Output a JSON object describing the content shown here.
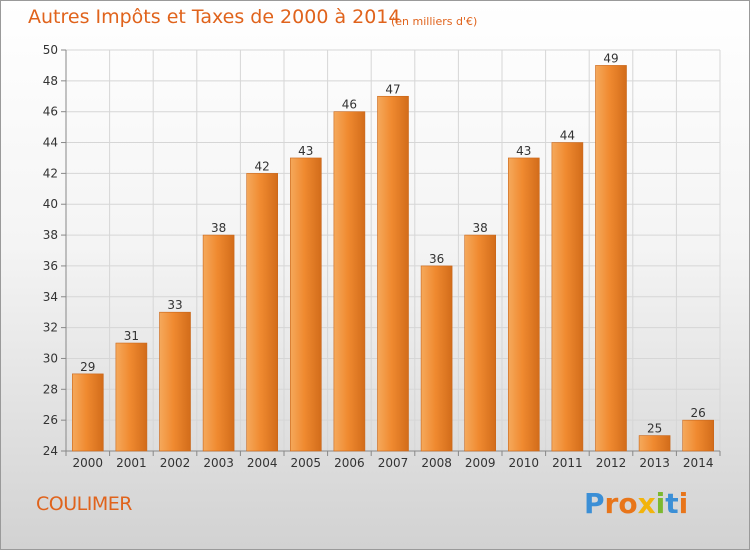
{
  "chart_data": {
    "type": "bar",
    "title": "Autres Impôts et Taxes de 2000 à 2014",
    "subtitle": "(en milliers d'€)",
    "categories": [
      "2000",
      "2001",
      "2002",
      "2003",
      "2004",
      "2005",
      "2006",
      "2007",
      "2008",
      "2009",
      "2010",
      "2011",
      "2012",
      "2013",
      "2014"
    ],
    "values": [
      29,
      31,
      33,
      38,
      42,
      43,
      46,
      47,
      36,
      38,
      43,
      44,
      49,
      25,
      26
    ],
    "ylim": [
      24,
      50
    ],
    "yticks": [
      24,
      26,
      28,
      30,
      32,
      34,
      36,
      38,
      40,
      42,
      44,
      46,
      48,
      50
    ],
    "grid": true,
    "bar_color": "#f08a30",
    "bar_color_light": "#f5a95c",
    "bar_color_dark": "#d26c1a"
  },
  "footer": {
    "place": "COULIMER",
    "brand_letters": [
      "P",
      "r",
      "o",
      "x",
      "i",
      "t",
      "i"
    ],
    "brand_colors": [
      "#3b8fd6",
      "#e8751a",
      "#e8751a",
      "#f2b40c",
      "#7cb82f",
      "#3b8fd6",
      "#e8751a"
    ]
  }
}
